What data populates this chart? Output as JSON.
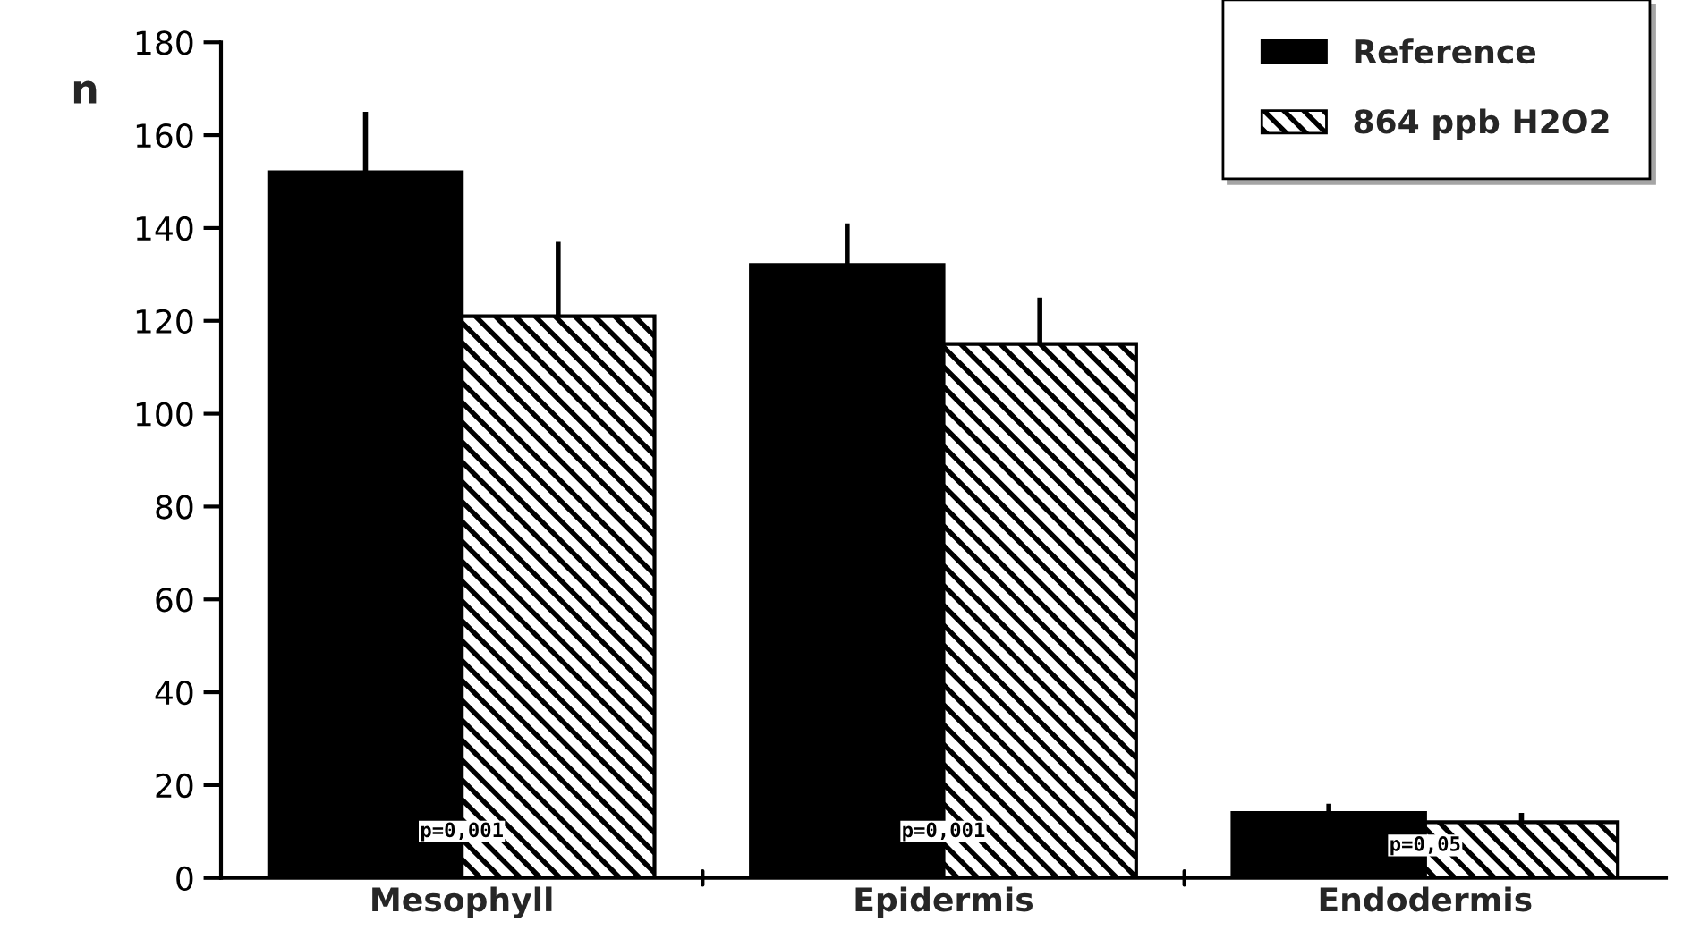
{
  "chart_data": {
    "type": "bar",
    "ylabel": "n",
    "categories": [
      "Mesophyll",
      "Epidermis",
      "Endodermis"
    ],
    "series": [
      {
        "name": "Reference",
        "color": "#000000",
        "values": [
          152,
          132,
          14
        ],
        "errors": [
          [
            152,
            165
          ],
          [
            132,
            141
          ],
          [
            14,
            16
          ]
        ]
      },
      {
        "name": "864 ppb H2O2",
        "color": "#000000",
        "values": [
          121,
          115,
          12
        ],
        "errors": [
          [
            121,
            137
          ],
          [
            115,
            125
          ],
          [
            12,
            14
          ]
        ]
      }
    ],
    "ylim": [
      0,
      180
    ],
    "yticks": [
      0,
      20,
      40,
      60,
      80,
      100,
      120,
      140,
      160,
      180
    ],
    "grid": false,
    "legend": "top right",
    "annotations": [
      {
        "text": "p=0,001",
        "x": "Mesophyll",
        "y": 10
      },
      {
        "text": "p=0,001",
        "x": "Epidermis",
        "y": 10
      },
      {
        "text": "p=0,05",
        "x": "Endodermis",
        "y": 7
      }
    ]
  }
}
